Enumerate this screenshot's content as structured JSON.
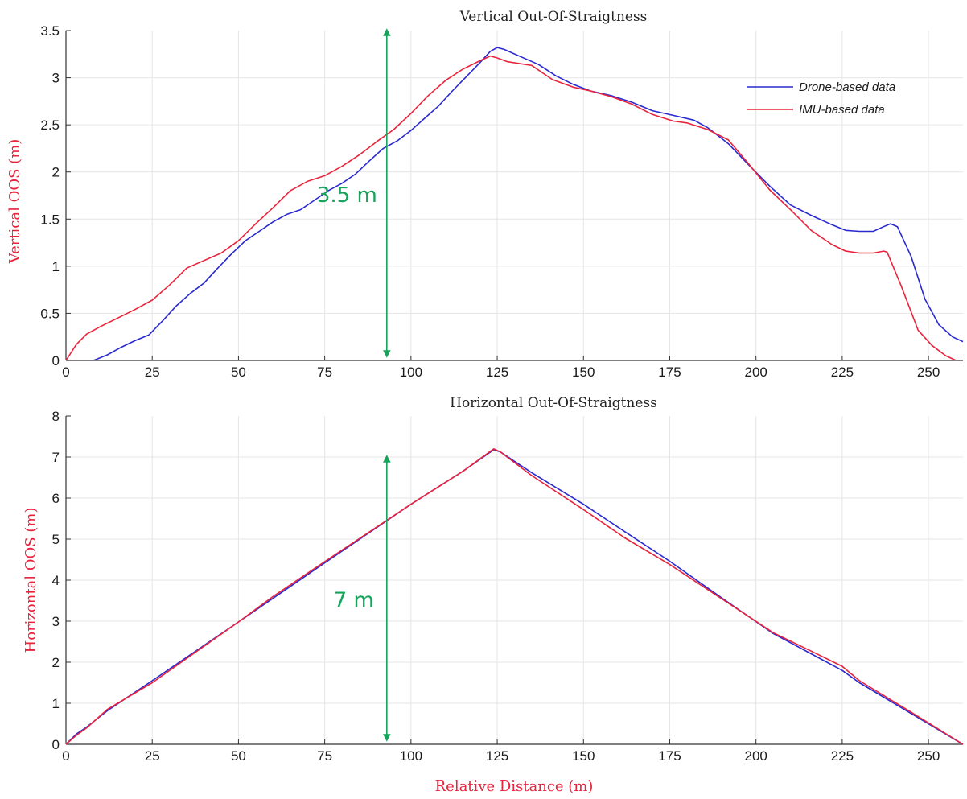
{
  "chart_data": [
    {
      "type": "line",
      "title": "Vertical Out-Of-Straigtness",
      "xlabel": "",
      "ylabel": "Vertical OOS (m)",
      "xlim": [
        0,
        260
      ],
      "ylim": [
        0,
        3.5
      ],
      "xticks": [
        0,
        25,
        50,
        75,
        100,
        125,
        150,
        175,
        200,
        225,
        250
      ],
      "yticks": [
        0,
        0.5,
        1,
        1.5,
        2,
        2.5,
        3,
        3.5
      ],
      "ytick_labels": [
        "0",
        "0.5",
        "1",
        "1.5",
        "2",
        "2.5",
        "3",
        "3.5"
      ],
      "grid": true,
      "legend_position": "top-right",
      "series": [
        {
          "name": "Drone-based data",
          "color": "#2a2ad0",
          "points": [
            [
              8,
              0
            ],
            [
              12,
              0.06
            ],
            [
              16,
              0.14
            ],
            [
              20,
              0.21
            ],
            [
              24,
              0.27
            ],
            [
              28,
              0.42
            ],
            [
              32,
              0.58
            ],
            [
              36,
              0.71
            ],
            [
              40,
              0.82
            ],
            [
              44,
              0.98
            ],
            [
              48,
              1.13
            ],
            [
              52,
              1.27
            ],
            [
              56,
              1.37
            ],
            [
              60,
              1.47
            ],
            [
              64,
              1.55
            ],
            [
              68,
              1.6
            ],
            [
              72,
              1.7
            ],
            [
              76,
              1.8
            ],
            [
              80,
              1.88
            ],
            [
              84,
              1.98
            ],
            [
              88,
              2.12
            ],
            [
              92,
              2.25
            ],
            [
              96,
              2.33
            ],
            [
              100,
              2.44
            ],
            [
              104,
              2.57
            ],
            [
              108,
              2.7
            ],
            [
              112,
              2.86
            ],
            [
              116,
              3.01
            ],
            [
              120,
              3.16
            ],
            [
              123,
              3.28
            ],
            [
              125,
              3.32
            ],
            [
              127,
              3.3
            ],
            [
              132,
              3.22
            ],
            [
              137,
              3.14
            ],
            [
              142,
              3.02
            ],
            [
              147,
              2.93
            ],
            [
              152,
              2.86
            ],
            [
              158,
              2.81
            ],
            [
              164,
              2.74
            ],
            [
              170,
              2.65
            ],
            [
              176,
              2.6
            ],
            [
              182,
              2.55
            ],
            [
              186,
              2.47
            ],
            [
              192,
              2.3
            ],
            [
              198,
              2.07
            ],
            [
              204,
              1.85
            ],
            [
              210,
              1.65
            ],
            [
              216,
              1.54
            ],
            [
              222,
              1.44
            ],
            [
              226,
              1.38
            ],
            [
              230,
              1.37
            ],
            [
              234,
              1.37
            ],
            [
              237,
              1.42
            ],
            [
              239,
              1.45
            ],
            [
              241,
              1.42
            ],
            [
              245,
              1.1
            ],
            [
              249,
              0.65
            ],
            [
              253,
              0.38
            ],
            [
              257,
              0.25
            ],
            [
              260,
              0.2
            ]
          ]
        },
        {
          "name": "IMU-based data",
          "color": "#e8243c",
          "points": [
            [
              0,
              0
            ],
            [
              3,
              0.17
            ],
            [
              6,
              0.28
            ],
            [
              10,
              0.36
            ],
            [
              15,
              0.45
            ],
            [
              20,
              0.54
            ],
            [
              25,
              0.64
            ],
            [
              30,
              0.8
            ],
            [
              35,
              0.98
            ],
            [
              40,
              1.06
            ],
            [
              45,
              1.14
            ],
            [
              50,
              1.27
            ],
            [
              55,
              1.45
            ],
            [
              60,
              1.62
            ],
            [
              65,
              1.8
            ],
            [
              70,
              1.9
            ],
            [
              75,
              1.96
            ],
            [
              80,
              2.06
            ],
            [
              85,
              2.18
            ],
            [
              90,
              2.32
            ],
            [
              95,
              2.45
            ],
            [
              100,
              2.62
            ],
            [
              105,
              2.81
            ],
            [
              110,
              2.97
            ],
            [
              115,
              3.09
            ],
            [
              120,
              3.18
            ],
            [
              123,
              3.23
            ],
            [
              125,
              3.21
            ],
            [
              128,
              3.17
            ],
            [
              135,
              3.13
            ],
            [
              141,
              2.98
            ],
            [
              147,
              2.9
            ],
            [
              152,
              2.86
            ],
            [
              158,
              2.8
            ],
            [
              164,
              2.72
            ],
            [
              170,
              2.61
            ],
            [
              176,
              2.54
            ],
            [
              180,
              2.52
            ],
            [
              186,
              2.45
            ],
            [
              192,
              2.34
            ],
            [
              198,
              2.08
            ],
            [
              204,
              1.81
            ],
            [
              210,
              1.6
            ],
            [
              216,
              1.38
            ],
            [
              222,
              1.23
            ],
            [
              226,
              1.16
            ],
            [
              230,
              1.14
            ],
            [
              234,
              1.14
            ],
            [
              237,
              1.16
            ],
            [
              238,
              1.15
            ],
            [
              242,
              0.8
            ],
            [
              247,
              0.32
            ],
            [
              251,
              0.16
            ],
            [
              255,
              0.05
            ],
            [
              258,
              0
            ]
          ]
        }
      ],
      "annotation": {
        "label": "3.5 m",
        "x": 93,
        "y_from": 0,
        "y_to": 3.5,
        "color": "#17a35a"
      }
    },
    {
      "type": "line",
      "title": "Horizontal Out-Of-Straigtness",
      "xlabel": "Relative Distance (m)",
      "ylabel": "Horizontal OOS (m)",
      "xlim": [
        0,
        260
      ],
      "ylim": [
        0,
        8
      ],
      "xticks": [
        0,
        25,
        50,
        75,
        100,
        125,
        150,
        175,
        200,
        225,
        250
      ],
      "yticks": [
        0,
        1,
        2,
        3,
        4,
        5,
        6,
        7,
        8
      ],
      "ytick_labels": [
        "0",
        "1",
        "2",
        "3",
        "4",
        "5",
        "6",
        "7",
        "8"
      ],
      "grid": true,
      "series": [
        {
          "name": "Drone-based data",
          "color": "#2a2ad0",
          "points": [
            [
              0,
              0
            ],
            [
              3,
              0.25
            ],
            [
              6,
              0.42
            ],
            [
              12,
              0.82
            ],
            [
              25,
              1.55
            ],
            [
              50,
              2.98
            ],
            [
              75,
              4.42
            ],
            [
              100,
              5.85
            ],
            [
              115,
              6.65
            ],
            [
              124,
              7.18
            ],
            [
              126,
              7.12
            ],
            [
              135,
              6.62
            ],
            [
              150,
              5.85
            ],
            [
              162,
              5.18
            ],
            [
              175,
              4.46
            ],
            [
              190,
              3.57
            ],
            [
              205,
              2.7
            ],
            [
              225,
              1.8
            ],
            [
              230,
              1.5
            ],
            [
              245,
              0.75
            ],
            [
              260,
              0
            ]
          ]
        },
        {
          "name": "IMU-based data",
          "color": "#e8243c",
          "points": [
            [
              0,
              0
            ],
            [
              3,
              0.22
            ],
            [
              6,
              0.4
            ],
            [
              12,
              0.85
            ],
            [
              25,
              1.5
            ],
            [
              50,
              2.98
            ],
            [
              60,
              3.6
            ],
            [
              75,
              4.45
            ],
            [
              100,
              5.85
            ],
            [
              115,
              6.65
            ],
            [
              124,
              7.2
            ],
            [
              126,
              7.12
            ],
            [
              135,
              6.55
            ],
            [
              150,
              5.72
            ],
            [
              162,
              5.03
            ],
            [
              175,
              4.38
            ],
            [
              190,
              3.55
            ],
            [
              205,
              2.72
            ],
            [
              225,
              1.9
            ],
            [
              230,
              1.55
            ],
            [
              245,
              0.78
            ],
            [
              260,
              0
            ]
          ]
        }
      ],
      "annotation": {
        "label": "7 m",
        "x": 93,
        "y_from": 0,
        "y_to": 7,
        "color": "#17a35a"
      }
    }
  ]
}
